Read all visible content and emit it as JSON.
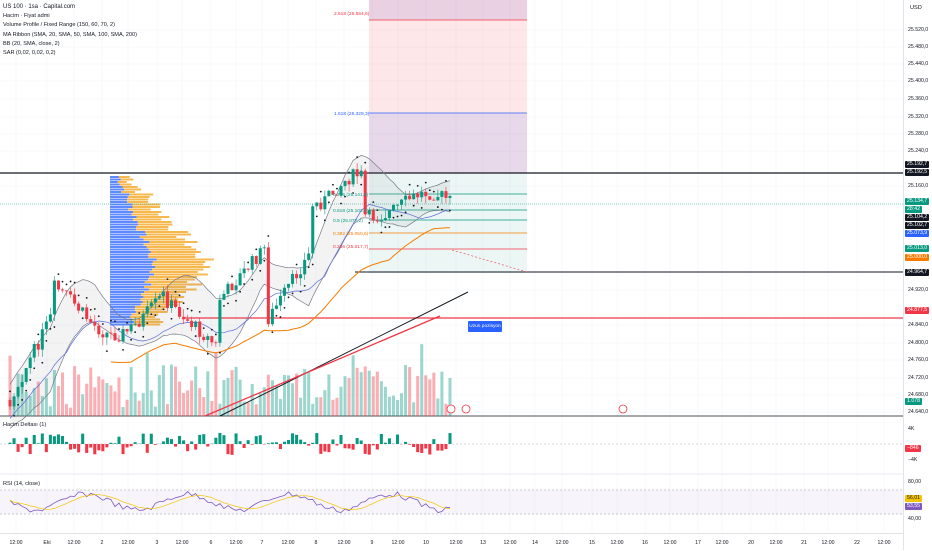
{
  "legend": {
    "title": "US 100 · 1sa · Capital.com",
    "indicators": [
      "Hacim · Fiyat admi",
      "Volume Profile / Fixed Range (150, 60, 70, 2)",
      "MA Ribbon (SMA, 20, SMA, 50, SMA, 100, SMA, 200)",
      "BB (20, SMA, close, 2)",
      "SAR (0,02, 0,02, 0,2)"
    ]
  },
  "currency": "USD",
  "price_ticks": [
    "25.520,0",
    "25.480,0",
    "25.440,0",
    "25.400,0",
    "25.360,0",
    "25.320,0",
    "25.280,0",
    "25.240,0",
    "25.160,0",
    "24.920,0",
    "24.840,0",
    "24.800,0",
    "24.760,0",
    "24.720,0",
    "24.680,0",
    "24.640,0"
  ],
  "price_badges": [
    {
      "text": "25.192,7",
      "bg": "#131722"
    },
    {
      "text": "25.192,5",
      "bg": "#131722"
    },
    {
      "text": "25.134,7",
      "bg": "#089981"
    },
    {
      "text": "28:42",
      "bg": "#089981"
    },
    {
      "text": "25.104,2",
      "bg": "#131722"
    },
    {
      "text": "25.102,7",
      "bg": "#131722"
    },
    {
      "text": "25.073,9",
      "bg": "#2962ff"
    },
    {
      "text": "25.013,0",
      "bg": "#089981"
    },
    {
      "text": "25.000,0",
      "bg": "#f57c00"
    },
    {
      "text": "24.964,7",
      "bg": "#131722"
    },
    {
      "text": "24.877,5",
      "bg": "#f23645"
    },
    {
      "text": "1.078",
      "bg": "#089981"
    }
  ],
  "fib_labels": [
    {
      "text": "2.618 (25.554,6)",
      "color": "#f23645"
    },
    {
      "text": "1.618 (25.329,3)",
      "color": "#2962ff"
    },
    {
      "text": "0.786 (25.141,6)",
      "color": "#089981"
    },
    {
      "text": "0.618 (25.103,7)",
      "color": "#089981"
    },
    {
      "text": "0.5 (25.077,2)",
      "color": "#089981"
    },
    {
      "text": "0.382 (25.050,6)",
      "color": "#f57c00"
    },
    {
      "text": "0.236 (25.017,7)",
      "color": "#f23645"
    }
  ],
  "panes": {
    "delta": {
      "label": "Hacim Deltası (1)",
      "ticks": [
        "4K",
        "−4K"
      ],
      "badge": "−846"
    },
    "rsi": {
      "label": "RSI (14, close)",
      "ticks": [
        "80,00",
        "40,00"
      ],
      "badges": [
        "56,01",
        "53,55"
      ]
    }
  },
  "time_ticks": [
    "12:00",
    "Eki",
    "12:00",
    "2",
    "12:00",
    "3",
    "12:00",
    "6",
    "12:00",
    "7",
    "12:00",
    "8",
    "12:00",
    "9",
    "12:00",
    "10",
    "12:00",
    "13",
    "12:00",
    "14",
    "12:00",
    "15",
    "12:00",
    "16",
    "12:00",
    "17",
    "12:00",
    "20",
    "12:00",
    "21",
    "12:00",
    "22",
    "12:00"
  ],
  "position_label": "Uzun pozisyon",
  "colors": {
    "up": "#089981",
    "down": "#f23645",
    "sar": "#131722",
    "bb": "#787b86",
    "ma20": "#5b6bd6",
    "ma50": "#f57c00"
  }
}
